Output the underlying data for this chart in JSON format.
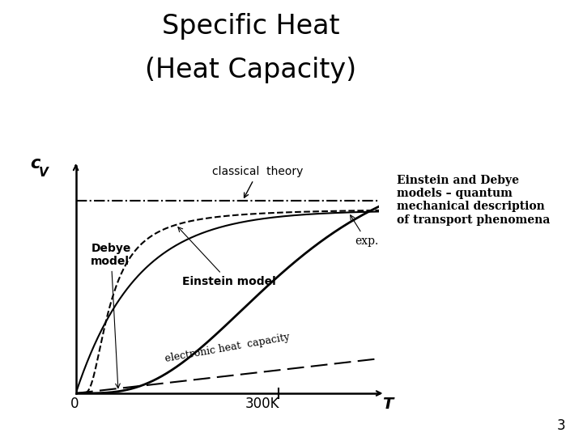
{
  "title_line1": "Specific Heat",
  "title_line2": "(Heat Capacity)",
  "title_fontsize": 24,
  "background_color": "#ffffff",
  "text_color": "#000000",
  "annotation_text": "Einstein and Debye\nmodels – quantum\nmechanical description\nof transport phenomena",
  "page_number": "3",
  "cv_label": "c",
  "cv_subscript": "V",
  "T_label": "T",
  "x_tick_label": "300K",
  "x_zero_label": "0",
  "classical_label": "classical  theory",
  "exp_label": "exp.",
  "debye_label": "Debye\nmodel",
  "einstein_label": "Einstein model",
  "electronic_label": "electronic heat  capacity"
}
